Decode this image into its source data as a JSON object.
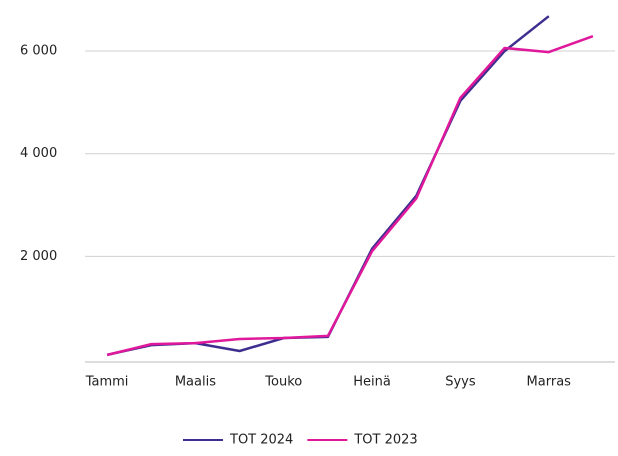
{
  "chart_data": {
    "type": "line",
    "categories": [
      "Tammi",
      null,
      "Maalis",
      null,
      "Touko",
      null,
      "Heinä",
      null,
      "Syys",
      null,
      "Marras",
      null
    ],
    "series": [
      {
        "name": "TOT 2024",
        "color": "#3d2e8f",
        "values": [
          80,
          270,
          310,
          155,
          410,
          430,
          2150,
          3180,
          5030,
          6000,
          6680,
          null
        ]
      },
      {
        "name": "TOT 2023",
        "color": "#e0189b",
        "values": [
          80,
          290,
          310,
          390,
          410,
          450,
          2100,
          3130,
          5090,
          6060,
          5980,
          6290
        ]
      }
    ],
    "ylim": [
      0,
      6800
    ],
    "yticks": [
      {
        "value": 2000,
        "label": "2 000"
      },
      {
        "value": 4000,
        "label": "4 000"
      },
      {
        "value": 6000,
        "label": "6 000"
      }
    ],
    "grid": true,
    "legend": "bottom"
  }
}
